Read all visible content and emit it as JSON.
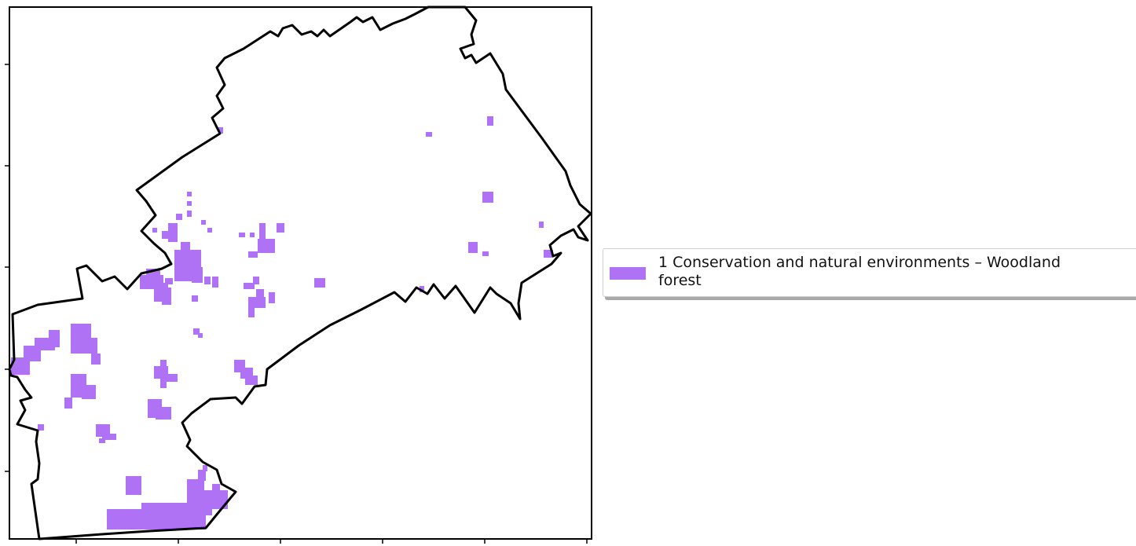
{
  "map": {
    "fill_color": "#b072f5",
    "outline_color": "#000000"
  },
  "legend": {
    "entries": [
      {
        "label": "1 Conservation and natural environments – Woodland forest",
        "color": "#b072f5"
      }
    ]
  }
}
